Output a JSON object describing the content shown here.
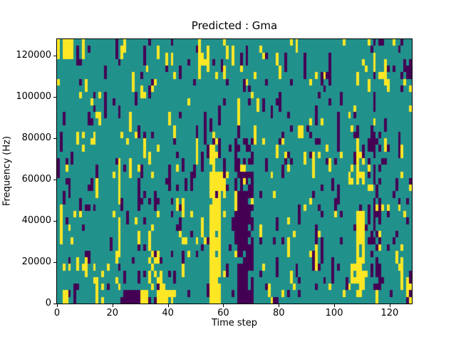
{
  "chart_data": {
    "type": "heatmap",
    "title": "Predicted : Gma",
    "xlabel": "Time step",
    "ylabel": "Frequency (Hz)",
    "x_range": [
      0,
      128
    ],
    "y_range": [
      0,
      128000
    ],
    "xticks": [
      0,
      20,
      40,
      60,
      80,
      100,
      120
    ],
    "yticks": [
      0,
      20000,
      40000,
      60000,
      80000,
      100000,
      120000
    ],
    "grid": {
      "cols": 128,
      "rows": 40,
      "hz_per_row": 3200
    },
    "legend_position": "none",
    "grid_lines": "off",
    "colormap": "viridis",
    "palette": {
      "mid": "#21918c",
      "low": "#440154",
      "high": "#fde725"
    },
    "class_meaning": {
      "mid": "background / neutral cells",
      "low": "dark purple cells",
      "high": "yellow cells"
    },
    "base_density": {
      "high": 0.05,
      "low": 0.05,
      "run_extend": 0.3
    },
    "seed": 1337,
    "features": [
      {
        "color": "high",
        "c0": 55,
        "c1": 58,
        "r0": 0,
        "r1": 19,
        "p": 0.88
      },
      {
        "color": "high",
        "c0": 56,
        "c1": 57,
        "r0": 20,
        "r1": 25,
        "p": 0.6
      },
      {
        "color": "low",
        "c0": 64,
        "c1": 70,
        "r0": 0,
        "r1": 24,
        "p": 0.4
      },
      {
        "color": "low",
        "c0": 65,
        "c1": 68,
        "r0": 0,
        "r1": 16,
        "p": 0.85
      },
      {
        "color": "high",
        "c0": 108,
        "c1": 110,
        "r0": 1,
        "r1": 13,
        "p": 0.85
      },
      {
        "color": "high",
        "c0": 108,
        "c1": 110,
        "r0": 18,
        "r1": 24,
        "p": 0.55
      },
      {
        "color": "low",
        "c0": 112,
        "c1": 116,
        "r0": 2,
        "r1": 26,
        "p": 0.28
      },
      {
        "color": "low",
        "c0": 23,
        "c1": 29,
        "r0": 0,
        "r1": 1,
        "p": 0.8
      },
      {
        "color": "high",
        "c0": 30,
        "c1": 32,
        "r0": 0,
        "r1": 1,
        "p": 0.8
      },
      {
        "color": "low",
        "c0": 33,
        "c1": 35,
        "r0": 0,
        "r1": 0,
        "p": 0.7
      },
      {
        "color": "high",
        "c0": 36,
        "c1": 42,
        "r0": 0,
        "r1": 1,
        "p": 0.7
      },
      {
        "color": "high",
        "c0": 33,
        "c1": 37,
        "r0": 2,
        "r1": 7,
        "p": 0.4
      },
      {
        "color": "high",
        "c0": 2,
        "c1": 5,
        "r0": 37,
        "r1": 39,
        "p": 0.8
      },
      {
        "color": "low",
        "c0": 125,
        "c1": 127,
        "r0": 33,
        "r1": 36,
        "p": 0.6
      },
      {
        "color": "high",
        "c0": 126,
        "c1": 127,
        "r0": 0,
        "r1": 3,
        "p": 0.6
      },
      {
        "color": "high",
        "c0": 2,
        "c1": 3,
        "r0": 0,
        "r1": 1,
        "p": 0.9
      }
    ]
  }
}
